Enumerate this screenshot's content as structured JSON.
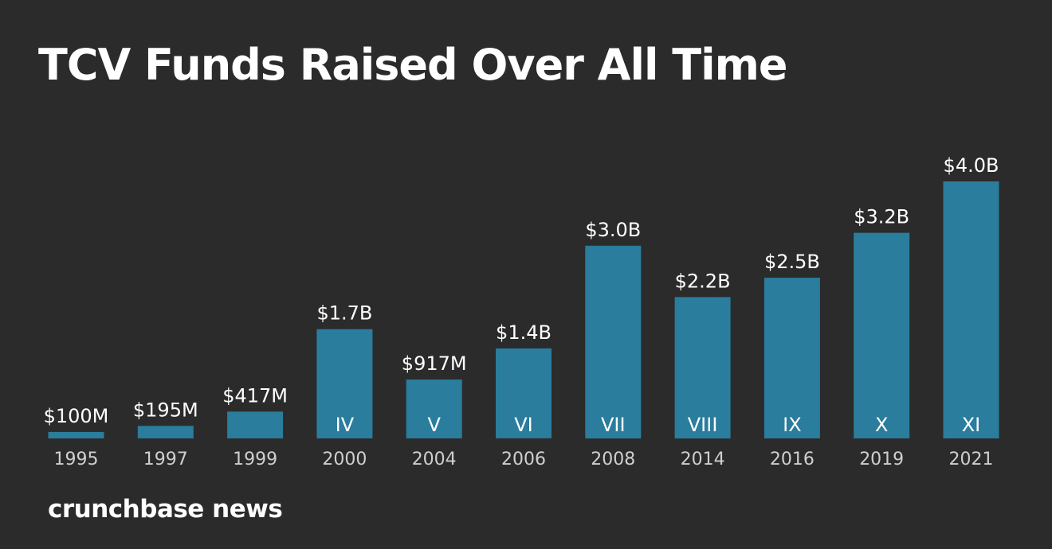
{
  "chart_data": {
    "type": "bar",
    "title": "TCV Funds Raised Over All Time",
    "xlabel": "",
    "ylabel": "",
    "categories": [
      "1995",
      "1997",
      "1999",
      "2000",
      "2004",
      "2006",
      "2008",
      "2014",
      "2016",
      "2019",
      "2021"
    ],
    "values": [
      100,
      195,
      417,
      1700,
      917,
      1400,
      3000,
      2200,
      2500,
      3200,
      4000
    ],
    "value_unit": "$M",
    "value_labels": [
      "$100M",
      "$195M",
      "$417M",
      "$1.7B",
      "$917M",
      "$1.4B",
      "$3.0B",
      "$2.2B",
      "$2.5B",
      "$3.2B",
      "$4.0B"
    ],
    "bar_labels": [
      "",
      "",
      "",
      "IV",
      "V",
      "VI",
      "VII",
      "VIII",
      "IX",
      "X",
      "XI"
    ],
    "ylim": [
      0,
      4000
    ],
    "grid": false,
    "colors": {
      "bar": "#2a7d9c",
      "text": "#ffffff",
      "tick": "#cfcfcf",
      "background": "#2b2b2b"
    }
  },
  "brand": "crunchbase news"
}
